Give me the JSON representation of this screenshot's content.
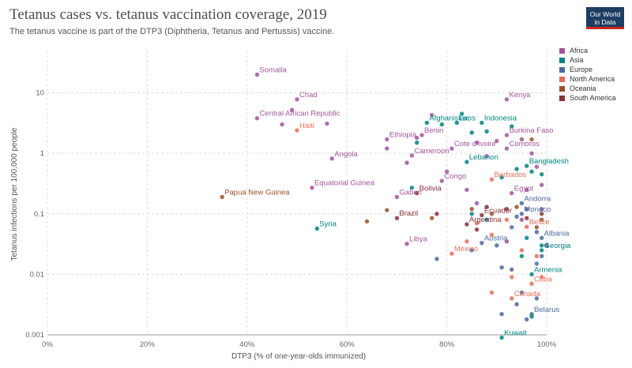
{
  "header": {
    "title": "Tetanus cases vs. tetanus vaccination coverage, 2019",
    "subtitle": "The tetanus vaccine is part of the DTP3 (Diphtheria, Tetanus and Pertussis) vaccine.",
    "logo_line1": "Our World",
    "logo_line2": "in Data"
  },
  "legend": {
    "items": [
      {
        "label": "Africa",
        "color": "#a2559c"
      },
      {
        "label": "Asia",
        "color": "#00847e"
      },
      {
        "label": "Europe",
        "color": "#4c6a9c"
      },
      {
        "label": "North America",
        "color": "#e56e5a"
      },
      {
        "label": "Oceania",
        "color": "#9a5129"
      },
      {
        "label": "South America",
        "color": "#883039"
      }
    ]
  },
  "chart_data": {
    "type": "scatter",
    "title": "Tetanus cases vs. tetanus vaccination coverage, 2019",
    "xlabel": "DTP3 (% of one-year-olds immunized)",
    "ylabel": "Tetanus infections per 100,000 people",
    "xlim": [
      0,
      100
    ],
    "ylim": [
      0.001,
      50
    ],
    "yscale": "log",
    "xticks": [
      0,
      20,
      40,
      60,
      80,
      100
    ],
    "xtick_labels": [
      "0%",
      "20%",
      "40%",
      "60%",
      "80%",
      "100%"
    ],
    "yticks": [
      0.001,
      0.01,
      0.1,
      1,
      10
    ],
    "ytick_labels": [
      "0.001",
      "0.01",
      "0.1",
      "1",
      "10"
    ],
    "grid": true,
    "legend_position": "right",
    "series": [
      {
        "name": "Africa",
        "color": "#a2559c",
        "points": [
          {
            "x": 42,
            "y": 20,
            "label": "Somalia"
          },
          {
            "x": 50,
            "y": 7.8,
            "label": "Chad"
          },
          {
            "x": 42,
            "y": 3.8,
            "label": "Central African Republic"
          },
          {
            "x": 92,
            "y": 7.8,
            "label": "Kenya"
          },
          {
            "x": 68,
            "y": 1.7,
            "label": "Ethiopia"
          },
          {
            "x": 75,
            "y": 2.0,
            "label": "Benin"
          },
          {
            "x": 92,
            "y": 2.0,
            "label": "Burkina Faso"
          },
          {
            "x": 57,
            "y": 0.82,
            "label": "Angola"
          },
          {
            "x": 73,
            "y": 0.92,
            "label": "Cameroon"
          },
          {
            "x": 81,
            "y": 1.2,
            "label": "Cote d'Ivoire"
          },
          {
            "x": 92,
            "y": 1.2,
            "label": "Comoros"
          },
          {
            "x": 53,
            "y": 0.27,
            "label": "Equatorial Guinea"
          },
          {
            "x": 79,
            "y": 0.35,
            "label": "Congo"
          },
          {
            "x": 70,
            "y": 0.19,
            "label": "Gabon"
          },
          {
            "x": 93,
            "y": 0.22,
            "label": "Egypt"
          },
          {
            "x": 72,
            "y": 0.032,
            "label": "Libya"
          },
          {
            "x": 49,
            "y": 5.2
          },
          {
            "x": 47,
            "y": 3.0
          },
          {
            "x": 56,
            "y": 3.1
          },
          {
            "x": 77,
            "y": 4.3
          },
          {
            "x": 68,
            "y": 1.2
          },
          {
            "x": 74,
            "y": 1.8
          },
          {
            "x": 72,
            "y": 0.7
          },
          {
            "x": 80,
            "y": 0.5
          },
          {
            "x": 86,
            "y": 1.5
          },
          {
            "x": 88,
            "y": 0.9
          },
          {
            "x": 90,
            "y": 1.6
          },
          {
            "x": 95,
            "y": 1.7
          },
          {
            "x": 97,
            "y": 1.0
          },
          {
            "x": 98,
            "y": 0.6
          },
          {
            "x": 99,
            "y": 0.3
          },
          {
            "x": 96,
            "y": 0.25
          },
          {
            "x": 84,
            "y": 0.25
          },
          {
            "x": 86,
            "y": 0.15
          },
          {
            "x": 95,
            "y": 0.08
          },
          {
            "x": 99,
            "y": 0.12
          },
          {
            "x": 92,
            "y": 0.035
          }
        ]
      },
      {
        "name": "Asia",
        "color": "#00847e",
        "points": [
          {
            "x": 76,
            "y": 3.2,
            "label": "Afghanistan"
          },
          {
            "x": 82,
            "y": 3.2,
            "label": "Laos"
          },
          {
            "x": 87,
            "y": 3.2,
            "label": "Indonesia"
          },
          {
            "x": 84,
            "y": 0.72,
            "label": "Lebanon"
          },
          {
            "x": 96,
            "y": 0.62,
            "label": "Bangladesh"
          },
          {
            "x": 54,
            "y": 0.057,
            "label": "Syria"
          },
          {
            "x": 99,
            "y": 0.025,
            "label": "Georgia"
          },
          {
            "x": 97,
            "y": 0.01,
            "label": "Armenia"
          },
          {
            "x": 91,
            "y": 0.0009,
            "label": "Kuwait"
          },
          {
            "x": 83,
            "y": 4.5
          },
          {
            "x": 79,
            "y": 3.0
          },
          {
            "x": 93,
            "y": 2.8
          },
          {
            "x": 88,
            "y": 2.3
          },
          {
            "x": 85,
            "y": 2.2
          },
          {
            "x": 73,
            "y": 0.27
          },
          {
            "x": 74,
            "y": 1.5
          },
          {
            "x": 91,
            "y": 0.4
          },
          {
            "x": 94,
            "y": 0.55
          },
          {
            "x": 97,
            "y": 0.5
          },
          {
            "x": 99,
            "y": 0.45
          },
          {
            "x": 85,
            "y": 0.1
          },
          {
            "x": 88,
            "y": 0.08
          },
          {
            "x": 96,
            "y": 0.04
          },
          {
            "x": 99,
            "y": 0.03
          },
          {
            "x": 95,
            "y": 0.02
          },
          {
            "x": 97,
            "y": 0.002
          }
        ]
      },
      {
        "name": "Europe",
        "color": "#4c6a9c",
        "points": [
          {
            "x": 95,
            "y": 0.15,
            "label": "Andorra"
          },
          {
            "x": 95,
            "y": 0.1,
            "label": "Monaco"
          },
          {
            "x": 99,
            "y": 0.04,
            "label": "Albania"
          },
          {
            "x": 87,
            "y": 0.033,
            "label": "Austria"
          },
          {
            "x": 97,
            "y": 0.0022,
            "label": "Belarus"
          },
          {
            "x": 78,
            "y": 0.018
          },
          {
            "x": 85,
            "y": 0.025
          },
          {
            "x": 90,
            "y": 0.03
          },
          {
            "x": 93,
            "y": 0.06
          },
          {
            "x": 94,
            "y": 0.09
          },
          {
            "x": 96,
            "y": 0.12
          },
          {
            "x": 98,
            "y": 0.05
          },
          {
            "x": 100,
            "y": 0.03
          },
          {
            "x": 91,
            "y": 0.013
          },
          {
            "x": 93,
            "y": 0.012
          },
          {
            "x": 98,
            "y": 0.015
          },
          {
            "x": 99,
            "y": 0.02
          },
          {
            "x": 95,
            "y": 0.005
          },
          {
            "x": 98,
            "y": 0.004
          },
          {
            "x": 94,
            "y": 0.0032
          },
          {
            "x": 91,
            "y": 0.0022
          },
          {
            "x": 96,
            "y": 0.0018
          }
        ]
      },
      {
        "name": "North America",
        "color": "#e56e5a",
        "points": [
          {
            "x": 50,
            "y": 2.4,
            "label": "Haiti"
          },
          {
            "x": 89,
            "y": 0.37,
            "label": "Barbados"
          },
          {
            "x": 96,
            "y": 0.061,
            "label": "Belize"
          },
          {
            "x": 81,
            "y": 0.022,
            "label": "Mexico"
          },
          {
            "x": 97,
            "y": 0.007,
            "label": "Cuba"
          },
          {
            "x": 93,
            "y": 0.004,
            "label": "Canada"
          },
          {
            "x": 84,
            "y": 0.035
          },
          {
            "x": 86,
            "y": 0.07
          },
          {
            "x": 89,
            "y": 0.045
          },
          {
            "x": 92,
            "y": 0.08
          },
          {
            "x": 95,
            "y": 0.025
          },
          {
            "x": 98,
            "y": 0.02
          },
          {
            "x": 93,
            "y": 0.009
          },
          {
            "x": 89,
            "y": 0.005
          },
          {
            "x": 99,
            "y": 0.009
          }
        ]
      },
      {
        "name": "Oceania",
        "color": "#9a5129",
        "points": [
          {
            "x": 35,
            "y": 0.19,
            "label": "Papua New Guinea"
          },
          {
            "x": 64,
            "y": 0.075
          },
          {
            "x": 68,
            "y": 0.115
          },
          {
            "x": 77,
            "y": 0.085
          },
          {
            "x": 85,
            "y": 0.12
          },
          {
            "x": 89,
            "y": 0.1
          },
          {
            "x": 94,
            "y": 0.13
          },
          {
            "x": 98,
            "y": 0.06
          },
          {
            "x": 99,
            "y": 0.08
          },
          {
            "x": 97,
            "y": 1.7
          }
        ]
      },
      {
        "name": "South America",
        "color": "#883039",
        "points": [
          {
            "x": 74,
            "y": 0.22,
            "label": "Bolivia"
          },
          {
            "x": 70,
            "y": 0.085,
            "label": "Brazil"
          },
          {
            "x": 87,
            "y": 0.095,
            "label": "Ecuador"
          },
          {
            "x": 84,
            "y": 0.067,
            "label": "Argentina"
          },
          {
            "x": 78,
            "y": 0.1
          },
          {
            "x": 86,
            "y": 0.055
          },
          {
            "x": 88,
            "y": 0.13
          },
          {
            "x": 92,
            "y": 0.12
          },
          {
            "x": 96,
            "y": 0.085
          },
          {
            "x": 99,
            "y": 0.1
          }
        ]
      }
    ]
  }
}
